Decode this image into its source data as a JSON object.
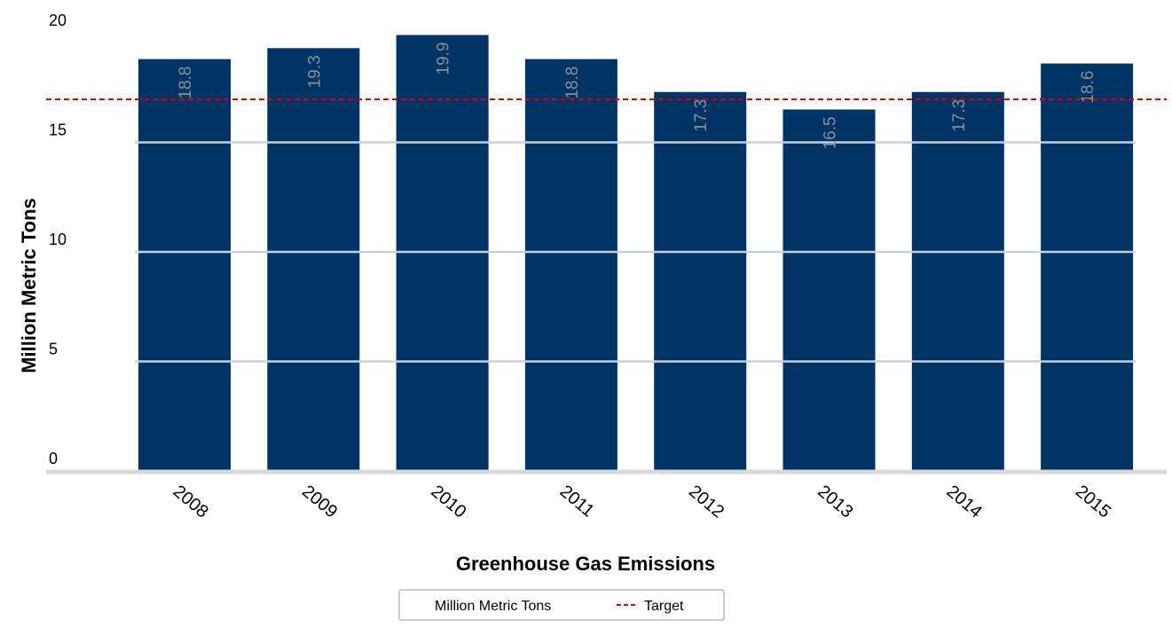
{
  "chart_data": {
    "type": "bar",
    "title": "",
    "xlabel": "Greenhouse Gas Emissions",
    "ylabel": "Million Metric Tons",
    "categories": [
      "2008",
      "2009",
      "2010",
      "2011",
      "2012",
      "2013",
      "2014",
      "2015"
    ],
    "series": [
      {
        "name": "Million Metric Tons",
        "values": [
          18.8,
          19.3,
          19.9,
          18.8,
          17.3,
          16.5,
          17.3,
          18.6
        ],
        "color": "#003366"
      }
    ],
    "data_labels": [
      "18.8",
      "19.3",
      "19.9",
      "18.8",
      "17.3",
      "16.5",
      "17.3",
      "18.6"
    ],
    "target": {
      "name": "Target",
      "value": 17.0,
      "color": "#cc0000",
      "style": "dashed"
    },
    "ylim": [
      0,
      20
    ],
    "yticks": [
      0,
      5,
      10,
      15,
      20
    ],
    "ytick_labels": [
      "0",
      "5",
      "10",
      "15",
      "20"
    ],
    "grid": true,
    "grid_color": "#c8d0dc",
    "axis_color": "#d9d9d9",
    "legend": {
      "position": "bottom-center",
      "entries": [
        "Million Metric Tons",
        "Target"
      ]
    }
  }
}
